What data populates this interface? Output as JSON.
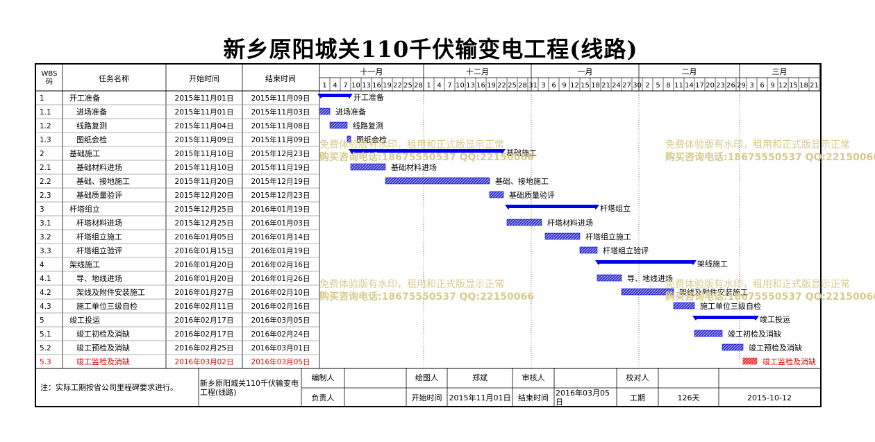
{
  "title": "新乡原阳城关110千伏输变电工程(线路)",
  "headers": {
    "wbs": "WBS码",
    "name": "任务名称",
    "start": "开始时间",
    "end": "结束时间"
  },
  "months": [
    {
      "label": "十一月",
      "start": "2015-11-01",
      "end": "2015-12-01"
    },
    {
      "label": "十二月",
      "start": "2015-12-01",
      "end": "2016-01-01"
    },
    {
      "label": "一月",
      "start": "2016-01-01",
      "end": "2016-02-01"
    },
    {
      "label": "二月",
      "start": "2016-02-01",
      "end": "2016-03-01"
    },
    {
      "label": "三月",
      "start": "2016-03-01",
      "end": "2016-03-24"
    }
  ],
  "day_ticks": [
    [
      "1",
      "4",
      "7",
      "10",
      "13",
      "16",
      "19",
      "22",
      "25",
      "28"
    ],
    [
      "1",
      "4",
      "7",
      "10",
      "13",
      "16",
      "19",
      "22",
      "25",
      "28",
      "31"
    ],
    [
      "3",
      "6",
      "9",
      "12",
      "15",
      "18",
      "21",
      "24",
      "27",
      "30"
    ],
    [
      "2",
      "5",
      "8",
      "11",
      "14",
      "17",
      "20",
      "23",
      "26",
      "29"
    ],
    [
      "3",
      "6",
      "9",
      "12",
      "15",
      "18",
      "21"
    ]
  ],
  "tasks": [
    {
      "wbs": "1",
      "name": "开工准备",
      "start": "2015年11月01日",
      "end": "2015年11月09日",
      "s": "2015-11-01",
      "e": "2015-11-09",
      "summary": true,
      "indent": 0
    },
    {
      "wbs": "1.1",
      "name": "进场准备",
      "start": "2015年11月01日",
      "end": "2015年11月03日",
      "s": "2015-11-01",
      "e": "2015-11-03",
      "summary": false,
      "indent": 1
    },
    {
      "wbs": "1.2",
      "name": "线路复测",
      "start": "2015年11月04日",
      "end": "2015年11月08日",
      "s": "2015-11-04",
      "e": "2015-11-08",
      "summary": false,
      "indent": 1
    },
    {
      "wbs": "1.3",
      "name": "图纸会检",
      "start": "2015年11月09日",
      "end": "2015年11月09日",
      "s": "2015-11-09",
      "e": "2015-11-09",
      "summary": false,
      "indent": 1
    },
    {
      "wbs": "2",
      "name": "基础施工",
      "start": "2015年11月10日",
      "end": "2015年12月23日",
      "s": "2015-11-10",
      "e": "2015-12-23",
      "summary": true,
      "indent": 0
    },
    {
      "wbs": "2.1",
      "name": "基础材料进场",
      "start": "2015年11月10日",
      "end": "2015年11月19日",
      "s": "2015-11-10",
      "e": "2015-11-19",
      "summary": false,
      "indent": 1
    },
    {
      "wbs": "2.2",
      "name": "基础、接地施工",
      "start": "2015年11月20日",
      "end": "2015年12月19日",
      "s": "2015-11-20",
      "e": "2015-12-19",
      "summary": false,
      "indent": 1
    },
    {
      "wbs": "2.3",
      "name": "基础质量验评",
      "start": "2015年12月20日",
      "end": "2015年12月23日",
      "s": "2015-12-20",
      "e": "2015-12-23",
      "summary": false,
      "indent": 1
    },
    {
      "wbs": "3",
      "name": "杆塔组立",
      "start": "2015年12月25日",
      "end": "2016年01月19日",
      "s": "2015-12-25",
      "e": "2016-01-19",
      "summary": true,
      "indent": 0
    },
    {
      "wbs": "3.1",
      "name": "杆塔材料进场",
      "start": "2015年12月25日",
      "end": "2016年01月03日",
      "s": "2015-12-25",
      "e": "2016-01-03",
      "summary": false,
      "indent": 1
    },
    {
      "wbs": "3.2",
      "name": "杆塔组立施工",
      "start": "2016年01月05日",
      "end": "2016年01月14日",
      "s": "2016-01-05",
      "e": "2016-01-14",
      "summary": false,
      "indent": 1
    },
    {
      "wbs": "3.3",
      "name": "杆塔组立验评",
      "start": "2016年01月15日",
      "end": "2016年01月19日",
      "s": "2016-01-15",
      "e": "2016-01-19",
      "summary": false,
      "indent": 1
    },
    {
      "wbs": "4",
      "name": "架线施工",
      "start": "2016年01月20日",
      "end": "2016年02月16日",
      "s": "2016-01-20",
      "e": "2016-02-16",
      "summary": true,
      "indent": 0
    },
    {
      "wbs": "4.1",
      "name": "导、地线进场",
      "start": "2016年01月20日",
      "end": "2016年01月26日",
      "s": "2016-01-20",
      "e": "2016-01-26",
      "summary": false,
      "indent": 1
    },
    {
      "wbs": "4.2",
      "name": "架线及附件安装施工",
      "start": "2016年01月27日",
      "end": "2016年02月10日",
      "s": "2016-01-27",
      "e": "2016-02-10",
      "summary": false,
      "indent": 1
    },
    {
      "wbs": "4.3",
      "name": "施工单位三级自检",
      "start": "2016年02月11日",
      "end": "2016年02月16日",
      "s": "2016-02-11",
      "e": "2016-02-16",
      "summary": false,
      "indent": 1
    },
    {
      "wbs": "5",
      "name": "竣工投运",
      "start": "2016年02月17日",
      "end": "2016年03月05日",
      "s": "2016-02-17",
      "e": "2016-03-05",
      "summary": true,
      "indent": 0
    },
    {
      "wbs": "5.1",
      "name": "竣工初检及消缺",
      "start": "2016年02月17日",
      "end": "2016年02月24日",
      "s": "2016-02-17",
      "e": "2016-02-24",
      "summary": false,
      "indent": 1
    },
    {
      "wbs": "5.2",
      "name": "竣工预检及消缺",
      "start": "2016年02月25日",
      "end": "2016年03月01日",
      "s": "2016-02-25",
      "e": "2016-03-01",
      "summary": false,
      "indent": 1
    },
    {
      "wbs": "5.3",
      "name": "竣工监检及消缺",
      "start": "2016年03月02日",
      "end": "2016年03月05日",
      "s": "2016-03-02",
      "e": "2016-03-05",
      "summary": false,
      "indent": 1,
      "highlight": true
    }
  ],
  "colors": {
    "summary": "#0000ee",
    "task": "#3a3acc",
    "critical": "#e23636",
    "critical_text": "#e00000",
    "grid": "#999999",
    "watermark": "#d8c98a"
  },
  "footer": {
    "note": "注：实际工期按省公司里程碑要求进行。",
    "project": "新乡原阳城关110千伏输变电工程(线路)",
    "compiler_label": "编制人",
    "compiler_value": "",
    "drawer_label": "绘图人",
    "drawer_value": "郑斌",
    "reviewer_label": "审核人",
    "reviewer_value": "",
    "checker_label": "校对人",
    "checker_value": "",
    "owner_label": "负责人",
    "owner_value": "",
    "start_label": "开始时间",
    "start_value": "2015年11月01日",
    "end_label": "结束时间",
    "end_value": "2016年03月05日",
    "duration_label": "工期",
    "duration_value": "126天",
    "date_value": "2015-10-12"
  },
  "watermark": {
    "line1": "免费体验版有水印，租用和正式版显示正常",
    "line2": "购买咨询电话:18675550537 QQ:22150066"
  }
}
